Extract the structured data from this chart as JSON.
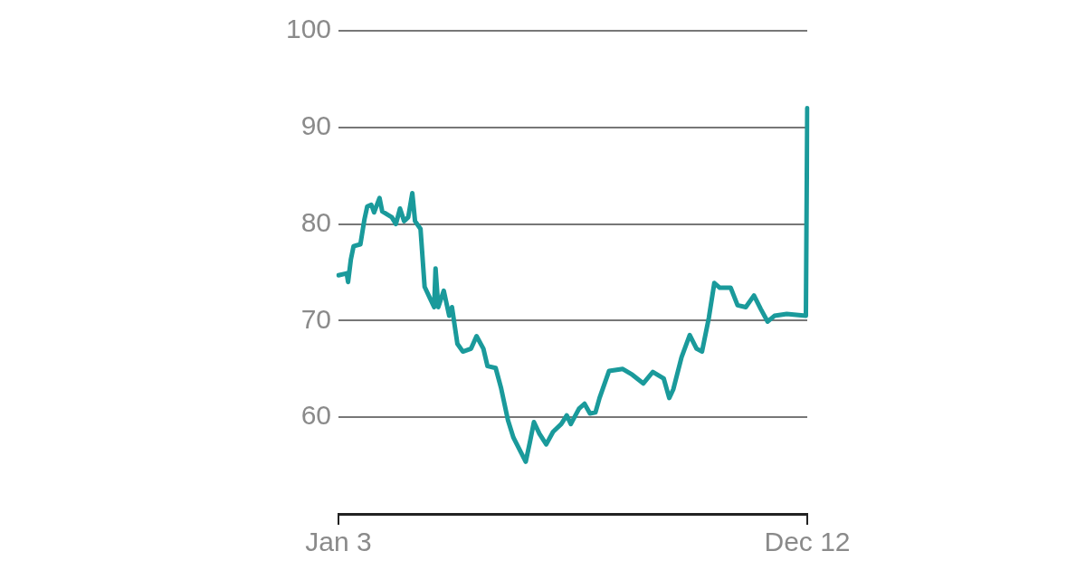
{
  "chart_data": {
    "type": "line",
    "color": "#1a9a9b",
    "categories": [
      "Jan 3",
      null,
      null,
      null,
      null,
      null,
      null,
      null,
      null,
      null,
      null,
      null,
      null,
      null,
      null,
      null,
      null,
      null,
      null,
      null,
      null,
      null,
      null,
      null,
      null,
      null,
      null,
      null,
      null,
      null,
      null,
      null,
      null,
      null,
      null,
      null,
      null,
      null,
      null,
      null,
      null,
      null,
      null,
      null,
      null,
      null,
      null,
      null,
      null,
      null,
      null,
      null,
      null,
      null,
      null,
      null,
      null,
      null,
      null,
      null,
      null,
      null,
      null,
      null,
      null,
      null,
      null,
      null,
      null,
      null,
      null,
      null,
      null,
      null,
      null,
      null,
      null,
      null,
      null,
      null,
      null,
      null,
      null,
      null,
      null,
      null,
      null,
      null,
      null,
      null,
      null,
      null,
      null,
      null,
      null,
      null,
      null,
      null,
      null,
      null,
      null,
      null,
      null,
      null,
      null,
      null,
      null,
      null,
      null,
      null,
      null,
      null,
      null,
      null,
      null,
      null,
      null,
      null,
      null,
      null,
      null,
      null,
      null,
      null,
      null,
      null,
      null,
      null,
      null,
      null,
      null,
      null,
      null,
      null,
      null,
      null,
      null,
      null,
      null,
      null,
      null,
      null,
      null,
      null,
      null,
      null,
      null,
      null,
      null,
      null,
      null,
      null,
      null,
      null,
      null,
      null,
      null,
      null,
      null,
      null,
      null,
      null,
      null,
      null,
      null,
      null,
      null,
      null,
      null,
      null,
      null,
      null,
      null,
      null,
      null,
      null,
      null,
      null,
      null,
      null,
      null,
      null,
      null,
      null,
      null,
      null,
      null,
      null,
      null,
      null,
      null,
      null,
      null,
      null,
      null,
      null,
      null,
      null,
      null,
      null,
      null,
      null,
      null,
      null,
      null,
      null,
      null,
      null,
      null,
      null,
      null,
      null,
      null,
      null,
      null,
      null,
      null,
      null,
      null,
      null,
      null,
      null,
      null,
      null,
      null,
      null,
      null,
      null,
      null,
      null,
      null,
      null,
      null,
      null,
      null,
      null,
      null,
      null,
      null,
      null,
      null,
      null,
      null,
      null,
      null,
      null,
      null,
      null,
      null,
      null,
      null,
      null,
      null,
      null,
      null,
      null,
      null,
      null,
      null,
      null,
      null,
      null,
      null,
      null,
      null,
      null,
      null,
      null,
      null,
      null,
      null,
      null,
      null,
      null,
      null,
      null,
      null,
      null,
      null,
      null,
      null,
      null,
      null,
      null,
      null,
      null,
      null,
      null,
      null,
      null,
      null,
      null,
      null,
      null,
      null,
      null,
      null,
      null,
      null,
      null,
      null,
      null,
      null,
      null,
      null,
      null,
      null,
      null,
      null,
      null,
      null,
      null,
      null,
      null,
      null,
      null,
      null,
      null,
      null,
      null,
      null,
      null,
      null,
      null,
      null,
      null,
      null,
      null,
      null,
      null,
      null,
      null,
      null,
      null,
      null,
      null,
      null,
      null,
      null,
      null,
      null,
      null,
      null,
      "Dec 12"
    ],
    "values": [
      74.7,
      null,
      null,
      null,
      null,
      null,
      74.9,
      74.0,
      null,
      76.3,
      null,
      77.7,
      null,
      null,
      null,
      null,
      77.9,
      null,
      null,
      80.5,
      null,
      81.8,
      null,
      null,
      82.0,
      null,
      81.2,
      null,
      null,
      null,
      82.7,
      null,
      81.3,
      null,
      null,
      null,
      null,
      null,
      null,
      80.7,
      null,
      null,
      80.0,
      null,
      null,
      81.6,
      null,
      null,
      80.3,
      null,
      null,
      80.7,
      null,
      null,
      83.2,
      null,
      80.3,
      null,
      null,
      null,
      79.5,
      null,
      null,
      73.5,
      null,
      null,
      null,
      72.3,
      null,
      null,
      71.4,
      75.4,
      null,
      71.4,
      null,
      null,
      null,
      73.1,
      null,
      null,
      null,
      70.5,
      null,
      71.4,
      null,
      null,
      null,
      67.6,
      null,
      null,
      null,
      66.8,
      null,
      null,
      null,
      null,
      null,
      67.1,
      null,
      null,
      null,
      68.4,
      null,
      null,
      null,
      null,
      67.1,
      null,
      null,
      65.3,
      null,
      null,
      null,
      null,
      null,
      65.1,
      null,
      null,
      null,
      63.0,
      null,
      null,
      null,
      null,
      59.7,
      null,
      null,
      null,
      57.9,
      null,
      null,
      null,
      null,
      null,
      null,
      null,
      null,
      55.4,
      null,
      null,
      57.4,
      null,
      null,
      59.5,
      null,
      null,
      null,
      58.3,
      null,
      null,
      null,
      null,
      57.2,
      null,
      null,
      null,
      null,
      58.5,
      null,
      null,
      null,
      null,
      null,
      59.3,
      null,
      null,
      null,
      60.2,
      null,
      null,
      59.3,
      null,
      null,
      null,
      null,
      null,
      60.9,
      null,
      null,
      null,
      61.4,
      null,
      null,
      null,
      60.4,
      null,
      null,
      null,
      60.5,
      null,
      null,
      62.0,
      null,
      null,
      null,
      null,
      null,
      null,
      64.8,
      null,
      null,
      null,
      null,
      null,
      null,
      null,
      null,
      null,
      65.0,
      null,
      null,
      null,
      null,
      null,
      null,
      64.4,
      null,
      null,
      null,
      null,
      null,
      null,
      null,
      63.5,
      null,
      null,
      null,
      null,
      null,
      null,
      64.7,
      null,
      null,
      null,
      null,
      null,
      null,
      null,
      64.0,
      null,
      null,
      null,
      62.0,
      null,
      null,
      62.9,
      null,
      null,
      null,
      null,
      null,
      66.2,
      null,
      null,
      null,
      null,
      null,
      68.5,
      null,
      null,
      null,
      null,
      67.1,
      null,
      null,
      null,
      66.8,
      null,
      null,
      null,
      null,
      70.3,
      null,
      null,
      null,
      73.9,
      null,
      null,
      null,
      73.4,
      null,
      null,
      null,
      null,
      null,
      null,
      null,
      73.4,
      null,
      null,
      null,
      null,
      71.6,
      null,
      null,
      null,
      null,
      null,
      71.4,
      null,
      null,
      null,
      null,
      null,
      72.6,
      null,
      null,
      null,
      null,
      71.2,
      null,
      null,
      null,
      null,
      69.9,
      null,
      null,
      null,
      null,
      70.5,
      null,
      null,
      null,
      null,
      null,
      null,
      null,
      null,
      70.7,
      null,
      null,
      null,
      null,
      null,
      null,
      null,
      null,
      null,
      null,
      null,
      null,
      null,
      70.5,
      92.0
    ],
    "ylim": [
      50,
      100
    ],
    "yticks": [
      60,
      70,
      80,
      90,
      100
    ],
    "grid": "y",
    "legend": false,
    "marker": "none",
    "line_style": "solid"
  }
}
